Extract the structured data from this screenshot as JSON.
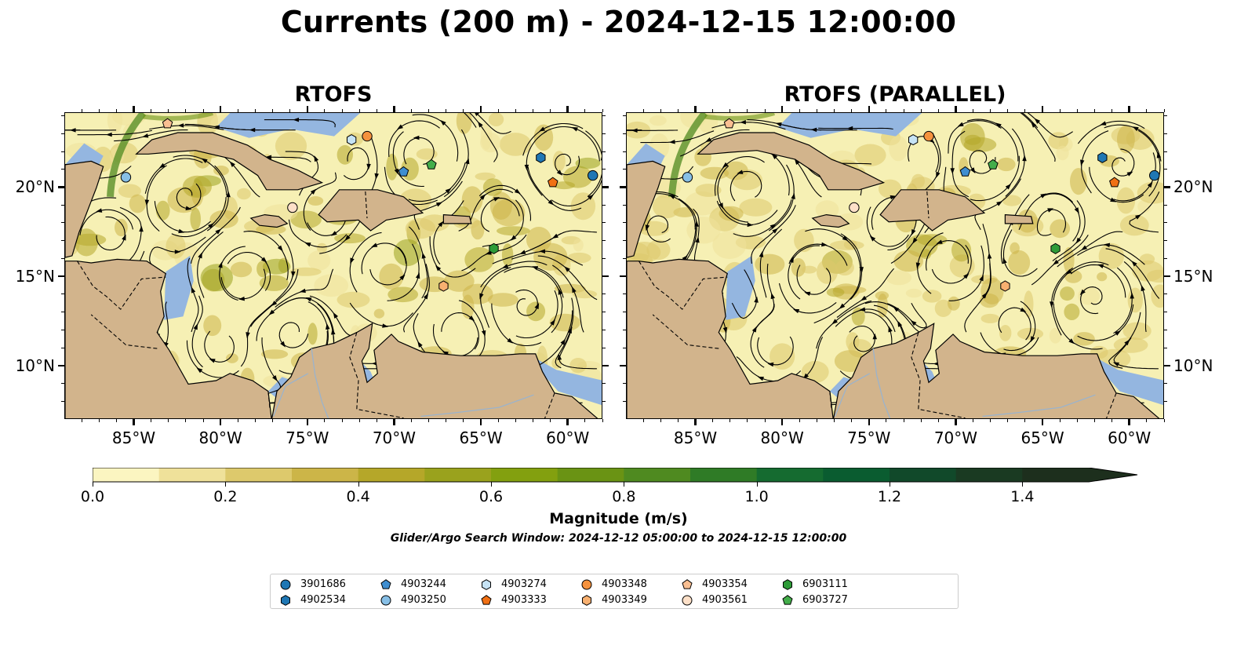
{
  "title": "Currents (200 m) - 2024-12-15 12:00:00",
  "panels": [
    {
      "title": "RTOFS"
    },
    {
      "title": "RTOFS (PARALLEL)"
    }
  ],
  "axes": {
    "lon_ticks": [
      "85°W",
      "80°W",
      "75°W",
      "70°W",
      "65°W",
      "60°W"
    ],
    "lat_ticks": [
      "20°N",
      "15°N",
      "10°N"
    ],
    "lon_range": [
      -89,
      -58
    ],
    "lat_range": [
      7,
      24.2
    ]
  },
  "colorbar": {
    "label": "Magnitude (m/s)",
    "ticks": [
      "0.0",
      "0.2",
      "0.4",
      "0.6",
      "0.8",
      "1.0",
      "1.2",
      "1.4"
    ],
    "range": [
      0,
      1.5
    ],
    "extend": "max",
    "colors": [
      "#fbf5c1",
      "#efe19a",
      "#ddc96c",
      "#ccb548",
      "#b5a729",
      "#9aa21d",
      "#83a00f",
      "#6a9314",
      "#4f8a20",
      "#2f7b26",
      "#156b30",
      "#0a5c30",
      "#11492a",
      "#1a3a22",
      "#1d2f1d"
    ]
  },
  "search_window": "Glider/Argo Search Window: 2024-12-12 05:00:00 to 2024-12-15 12:00:00",
  "colors": {
    "land": "#d2b48c",
    "shallow": "#94b6e0",
    "background": "#f6f0b4"
  },
  "floats": [
    {
      "id": "3901686",
      "shape": "circle",
      "color": "#1f77b4",
      "lon": -58.6,
      "lat": 20.7
    },
    {
      "id": "4902534",
      "shape": "hexagon",
      "color": "#1f77b4",
      "lon": -61.6,
      "lat": 21.7
    },
    {
      "id": "4903244",
      "shape": "pentagon",
      "color": "#3f8ed0",
      "lon": -69.5,
      "lat": 20.9
    },
    {
      "id": "4903250",
      "shape": "circle",
      "color": "#87bfe6",
      "lon": -85.5,
      "lat": 20.6
    },
    {
      "id": "4903274",
      "shape": "hexagon",
      "color": "#c6e3f5",
      "lon": -72.5,
      "lat": 22.7
    },
    {
      "id": "4903333",
      "shape": "pentagon",
      "color": "#f07014",
      "lon": -60.9,
      "lat": 20.3
    },
    {
      "id": "4903348",
      "shape": "circle",
      "color": "#f5923e",
      "lon": -71.6,
      "lat": 22.9
    },
    {
      "id": "4903349",
      "shape": "hexagon",
      "color": "#f8b070",
      "lon": -67.2,
      "lat": 14.5
    },
    {
      "id": "4903354",
      "shape": "pentagon",
      "color": "#f9bf92",
      "lon": -83.1,
      "lat": 23.6
    },
    {
      "id": "4903561",
      "shape": "circle",
      "color": "#fde0c8",
      "lon": -75.9,
      "lat": 18.9
    },
    {
      "id": "6903111",
      "shape": "hexagon",
      "color": "#2e9b38",
      "lon": -64.3,
      "lat": 16.6
    },
    {
      "id": "6903727",
      "shape": "pentagon",
      "color": "#43ad4a",
      "lon": -67.9,
      "lat": 21.3
    }
  ]
}
